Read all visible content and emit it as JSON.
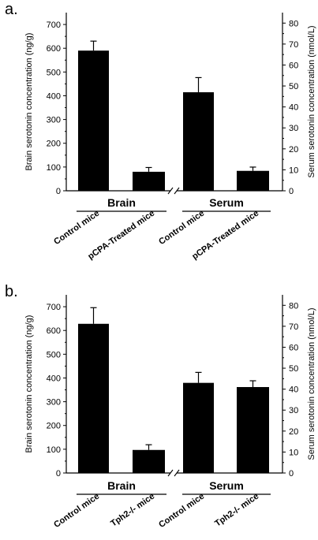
{
  "chart_data": [
    {
      "panel": "a.",
      "type": "bar",
      "ylabel": "Brain serotonin concentration (ng/g)",
      "y2label": "Serum serotonin concentration (nmol/L)",
      "ylim": [
        0,
        750
      ],
      "y2lim": [
        0,
        85
      ],
      "yticks": [
        0,
        100,
        200,
        300,
        400,
        500,
        600,
        700
      ],
      "y2ticks": [
        0,
        10,
        20,
        30,
        40,
        50,
        60,
        70,
        80
      ],
      "groups": [
        {
          "label": "Brain",
          "axis": "left",
          "bars": [
            {
              "category": "Control mice",
              "value": 590,
              "error": 40
            },
            {
              "category": "pCPA-Treated mice",
              "value": 80,
              "error": 18
            }
          ]
        },
        {
          "label": "Serum",
          "axis": "right",
          "bars": [
            {
              "category": "Control mice",
              "value": 47,
              "error": 7
            },
            {
              "category": "pCPA-Treated mice",
              "value": 9.5,
              "error": 1.8
            }
          ]
        }
      ]
    },
    {
      "panel": "b.",
      "type": "bar",
      "ylabel": "Brain serotonin concentration (ng/g)",
      "y2label": "Serum serotonin concentration (nmol/L)",
      "ylim": [
        0,
        750
      ],
      "y2lim": [
        0,
        85
      ],
      "yticks": [
        0,
        100,
        200,
        300,
        400,
        500,
        600,
        700
      ],
      "y2ticks": [
        0,
        10,
        20,
        30,
        40,
        50,
        60,
        70,
        80
      ],
      "groups": [
        {
          "label": "Brain",
          "axis": "left",
          "bars": [
            {
              "category": "Control mice",
              "value": 628,
              "error": 68
            },
            {
              "category": "Tph2-/- mice",
              "value": 97,
              "error": 22
            }
          ]
        },
        {
          "label": "Serum",
          "axis": "right",
          "bars": [
            {
              "category": "Control mice",
              "value": 43,
              "error": 5
            },
            {
              "category": "Tph2-/- mice",
              "value": 41,
              "error": 3
            }
          ]
        }
      ]
    }
  ]
}
